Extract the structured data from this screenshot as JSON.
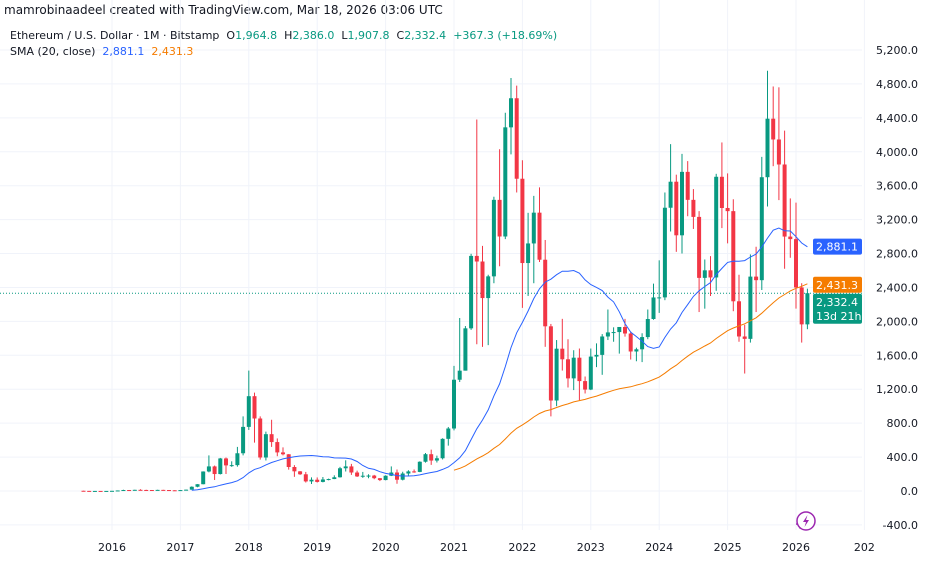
{
  "credit": "mamrobinaadeel created with TradingView.com, Mar 18, 2026 03:06 UTC",
  "legend": {
    "symbol": "Ethereum / U.S. Dollar · 1M · Bitstamp",
    "o_label": "O",
    "o": "1,964.8",
    "h_label": "H",
    "h": "2,386.0",
    "l_label": "L",
    "l": "1,907.8",
    "c_label": "C",
    "c": "2,332.4",
    "change": "+367.3 (+18.69%)",
    "sma_label": "SMA (20, close)",
    "sma_value_1": "2,881.1",
    "sma_value_2": "2,431.3"
  },
  "price_tags": {
    "sma_1": "2,881.1",
    "sma_2": "2,431.3",
    "last_price": "2,332.4",
    "countdown": "13d 21h"
  },
  "colors": {
    "up": "#089981",
    "down": "#f23645",
    "sma_1": "#2962ff",
    "sma_2": "#f57c00",
    "grid": "#f0f3fa"
  },
  "logo": "TradingView",
  "chart_data": {
    "type": "candlestick",
    "interval": "1M",
    "ylim": [
      -520,
      5300
    ],
    "y_ticks": [
      "-400.0",
      "0.0",
      "400.0",
      "800.0",
      "1,200.0",
      "1,600.0",
      "2,000.0",
      "2,400.0",
      "2,800.0",
      "3,200.0",
      "3,600.0",
      "4,000.0",
      "4,400.0",
      "4,800.0",
      "5,200.0"
    ],
    "x_ticks": [
      "2016",
      "2017",
      "2018",
      "2019",
      "2020",
      "2021",
      "2022",
      "2023",
      "2024",
      "2025",
      "2026",
      "202"
    ],
    "grid": true,
    "columns": [
      "month",
      "open",
      "high",
      "low",
      "close"
    ],
    "candles": [
      [
        "2015-08",
        2.8,
        2.8,
        0.6,
        1.35
      ],
      [
        "2015-09",
        1.35,
        1.4,
        0.6,
        0.74
      ],
      [
        "2015-10",
        0.74,
        1.2,
        0.4,
        0.9
      ],
      [
        "2015-11",
        0.9,
        1.0,
        0.8,
        0.87
      ],
      [
        "2015-12",
        0.87,
        1.0,
        0.8,
        0.93
      ],
      [
        "2016-01",
        0.93,
        2.8,
        0.9,
        2.2
      ],
      [
        "2016-02",
        2.2,
        6.5,
        2.1,
        6.3
      ],
      [
        "2016-03",
        6.3,
        15,
        6,
        11.4
      ],
      [
        "2016-04",
        11.4,
        12,
        6.9,
        8.8
      ],
      [
        "2016-05",
        8.8,
        14.6,
        8.3,
        14
      ],
      [
        "2016-06",
        14,
        21,
        10,
        12.3
      ],
      [
        "2016-07",
        12.3,
        14.8,
        10,
        11.6
      ],
      [
        "2016-08",
        11.6,
        12,
        9.4,
        11.3
      ],
      [
        "2016-09",
        11.3,
        14.4,
        11,
        13.2
      ],
      [
        "2016-10",
        13.2,
        14,
        10.5,
        11.3
      ],
      [
        "2016-11",
        11.3,
        11.5,
        8.5,
        8.5
      ],
      [
        "2016-12",
        8.5,
        9,
        6.2,
        8
      ],
      [
        "2017-01",
        8,
        11.6,
        7.9,
        10.7
      ],
      [
        "2017-02",
        10.7,
        16,
        10.3,
        15.8
      ],
      [
        "2017-03",
        15.8,
        55,
        15.5,
        50
      ],
      [
        "2017-04",
        50,
        81,
        44,
        80
      ],
      [
        "2017-05",
        80,
        232,
        79,
        230
      ],
      [
        "2017-06",
        230,
        420,
        220,
        290
      ],
      [
        "2017-07",
        290,
        300,
        130,
        200
      ],
      [
        "2017-08",
        200,
        390,
        195,
        384
      ],
      [
        "2017-09",
        384,
        395,
        200,
        302
      ],
      [
        "2017-10",
        302,
        350,
        285,
        305
      ],
      [
        "2017-11",
        305,
        520,
        287,
        445
      ],
      [
        "2017-12",
        445,
        880,
        420,
        756
      ],
      [
        "2018-01",
        756,
        1420,
        720,
        1118
      ],
      [
        "2018-02",
        1118,
        1160,
        570,
        855
      ],
      [
        "2018-03",
        855,
        880,
        370,
        395
      ],
      [
        "2018-04",
        395,
        700,
        360,
        670
      ],
      [
        "2018-05",
        670,
        840,
        520,
        577
      ],
      [
        "2018-06",
        577,
        620,
        410,
        455
      ],
      [
        "2018-07",
        455,
        515,
        420,
        433
      ],
      [
        "2018-08",
        433,
        435,
        252,
        283
      ],
      [
        "2018-09",
        283,
        305,
        167,
        232
      ],
      [
        "2018-10",
        232,
        235,
        190,
        197
      ],
      [
        "2018-11",
        197,
        225,
        100,
        113
      ],
      [
        "2018-12",
        113,
        160,
        82,
        133
      ],
      [
        "2019-01",
        133,
        160,
        100,
        107
      ],
      [
        "2019-02",
        107,
        165,
        102,
        136
      ],
      [
        "2019-03",
        136,
        146,
        126,
        141
      ],
      [
        "2019-04",
        141,
        185,
        140,
        162
      ],
      [
        "2019-05",
        162,
        285,
        158,
        268
      ],
      [
        "2019-06",
        268,
        362,
        230,
        290
      ],
      [
        "2019-07",
        290,
        320,
        190,
        218
      ],
      [
        "2019-08",
        218,
        240,
        165,
        172
      ],
      [
        "2019-09",
        172,
        225,
        155,
        180
      ],
      [
        "2019-10",
        180,
        197,
        151,
        182
      ],
      [
        "2019-11",
        182,
        190,
        139,
        151
      ],
      [
        "2019-12",
        151,
        152,
        117,
        129
      ],
      [
        "2020-01",
        129,
        185,
        126,
        180
      ],
      [
        "2020-02",
        180,
        290,
        176,
        218
      ],
      [
        "2020-03",
        218,
        253,
        86,
        133
      ],
      [
        "2020-04",
        133,
        227,
        125,
        206
      ],
      [
        "2020-05",
        206,
        245,
        180,
        231
      ],
      [
        "2020-06",
        231,
        254,
        215,
        225
      ],
      [
        "2020-07",
        225,
        350,
        222,
        345
      ],
      [
        "2020-08",
        345,
        448,
        335,
        434
      ],
      [
        "2020-09",
        434,
        488,
        308,
        359
      ],
      [
        "2020-10",
        359,
        417,
        336,
        386
      ],
      [
        "2020-11",
        386,
        622,
        372,
        615
      ],
      [
        "2020-12",
        615,
        755,
        535,
        737
      ],
      [
        "2021-01",
        737,
        1476,
        715,
        1312
      ],
      [
        "2021-02",
        1312,
        2040,
        1285,
        1419
      ],
      [
        "2021-03",
        1419,
        1945,
        1420,
        1918
      ],
      [
        "2021-04",
        1918,
        2797,
        1900,
        2772
      ],
      [
        "2021-05",
        2772,
        4380,
        1730,
        2706
      ],
      [
        "2021-06",
        2706,
        2890,
        1700,
        2275
      ],
      [
        "2021-07",
        2275,
        2550,
        1720,
        2531
      ],
      [
        "2021-08",
        2531,
        3470,
        2450,
        3433
      ],
      [
        "2021-09",
        3433,
        4030,
        2650,
        3001
      ],
      [
        "2021-10",
        3001,
        4460,
        2970,
        4288
      ],
      [
        "2021-11",
        4288,
        4870,
        3970,
        4631
      ],
      [
        "2021-12",
        4631,
        4780,
        3520,
        3682
      ],
      [
        "2022-01",
        3682,
        3900,
        2160,
        2688
      ],
      [
        "2022-02",
        2688,
        3280,
        2300,
        2919
      ],
      [
        "2022-03",
        2919,
        3480,
        2450,
        3282
      ],
      [
        "2022-04",
        3282,
        3580,
        2700,
        2727
      ],
      [
        "2022-05",
        2727,
        2960,
        1700,
        1942
      ],
      [
        "2022-06",
        1942,
        1970,
        880,
        1067
      ],
      [
        "2022-07",
        1067,
        1780,
        1000,
        1678
      ],
      [
        "2022-08",
        1678,
        2030,
        1420,
        1553
      ],
      [
        "2022-09",
        1553,
        1790,
        1220,
        1328
      ],
      [
        "2022-10",
        1328,
        1660,
        1190,
        1572
      ],
      [
        "2022-11",
        1572,
        1680,
        1070,
        1296
      ],
      [
        "2022-12",
        1296,
        1350,
        1150,
        1196
      ],
      [
        "2023-01",
        1196,
        1680,
        1190,
        1585
      ],
      [
        "2023-02",
        1585,
        1740,
        1460,
        1605
      ],
      [
        "2023-03",
        1605,
        1850,
        1370,
        1822
      ],
      [
        "2023-04",
        1822,
        2140,
        1780,
        1870
      ],
      [
        "2023-05",
        1870,
        1930,
        1760,
        1874
      ],
      [
        "2023-06",
        1874,
        1930,
        1620,
        1934
      ],
      [
        "2023-07",
        1934,
        2030,
        1820,
        1857
      ],
      [
        "2023-08",
        1857,
        1880,
        1550,
        1645
      ],
      [
        "2023-09",
        1645,
        1690,
        1530,
        1671
      ],
      [
        "2023-10",
        1671,
        1860,
        1520,
        1815
      ],
      [
        "2023-11",
        1815,
        2140,
        1790,
        2028
      ],
      [
        "2023-12",
        2028,
        2445,
        2020,
        2282
      ],
      [
        "2024-01",
        2282,
        2720,
        2100,
        2283
      ],
      [
        "2024-02",
        2283,
        3520,
        2250,
        3340
      ],
      [
        "2024-03",
        3340,
        4090,
        3060,
        3647
      ],
      [
        "2024-04",
        3647,
        3730,
        2820,
        3015
      ],
      [
        "2024-05",
        3015,
        3975,
        2800,
        3763
      ],
      [
        "2024-06",
        3763,
        3890,
        3240,
        3433
      ],
      [
        "2024-07",
        3433,
        3560,
        3090,
        3232
      ],
      [
        "2024-08",
        3232,
        3300,
        2110,
        2513
      ],
      [
        "2024-09",
        2513,
        2730,
        2150,
        2602
      ],
      [
        "2024-10",
        2602,
        2770,
        2300,
        2518
      ],
      [
        "2024-11",
        2518,
        3740,
        2360,
        3705
      ],
      [
        "2024-12",
        3705,
        4110,
        3100,
        3337
      ],
      [
        "2025-01",
        3337,
        3745,
        2920,
        3300
      ],
      [
        "2025-02",
        3300,
        3440,
        2120,
        2237
      ],
      [
        "2025-03",
        2237,
        2550,
        1760,
        1822
      ],
      [
        "2025-04",
        1822,
        1960,
        1385,
        1794
      ],
      [
        "2025-05",
        1794,
        2790,
        1750,
        2528
      ],
      [
        "2025-06",
        2528,
        2880,
        2110,
        2486
      ],
      [
        "2025-07",
        2486,
        3940,
        2370,
        3700
      ],
      [
        "2025-08",
        3700,
        4955,
        3355,
        4390
      ],
      [
        "2025-09",
        4390,
        4770,
        3830,
        4145
      ],
      [
        "2025-10",
        4145,
        4760,
        3430,
        3850
      ],
      [
        "2025-11",
        3850,
        4250,
        2620,
        3000
      ],
      [
        "2025-12",
        3000,
        3450,
        2750,
        2970
      ],
      [
        "2026-01",
        2970,
        3400,
        2150,
        2400
      ],
      [
        "2026-02",
        2400,
        2450,
        1750,
        1964.8
      ],
      [
        "2026-03",
        1964.8,
        2386,
        1907.8,
        2332.4
      ]
    ],
    "indicators": [
      {
        "name": "SMA (20, close)",
        "value": 2881.1,
        "color": "#2962ff"
      },
      {
        "value": 2431.3,
        "color": "#f57c00"
      }
    ],
    "last_price": 2332.4
  }
}
